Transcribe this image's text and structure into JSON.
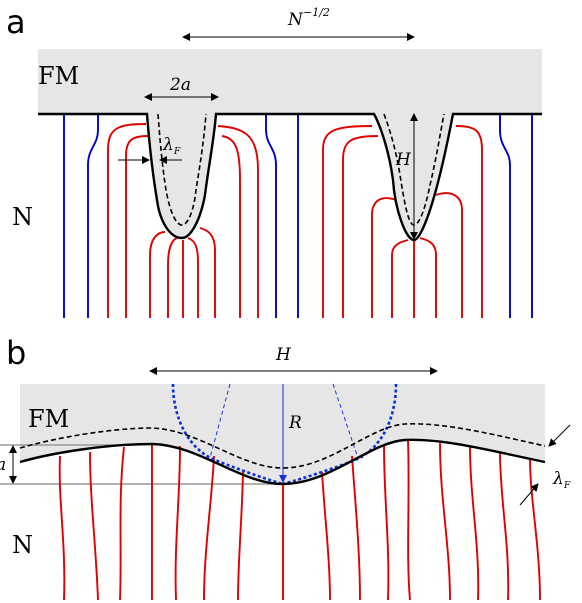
{
  "panel_a": {
    "label": "a",
    "fm_label": "FM",
    "n_label": "N",
    "spacing_label": "N",
    "spacing_exp": "−1/2",
    "width_label": "2a",
    "depth_label": "H",
    "lambda_label": "λ",
    "lambda_sub": "F"
  },
  "panel_b": {
    "label": "b",
    "fm_label": "FM",
    "n_label": "N",
    "period_label": "H",
    "radius_label": "R",
    "amp_label": "a",
    "lambda_label": "λ",
    "lambda_sub": "F"
  },
  "colors": {
    "fm_region": "#e6e6e6",
    "nonmagnetic_line": "#0000d0",
    "magnetic_line": "#e00000",
    "interface": "#000000"
  }
}
